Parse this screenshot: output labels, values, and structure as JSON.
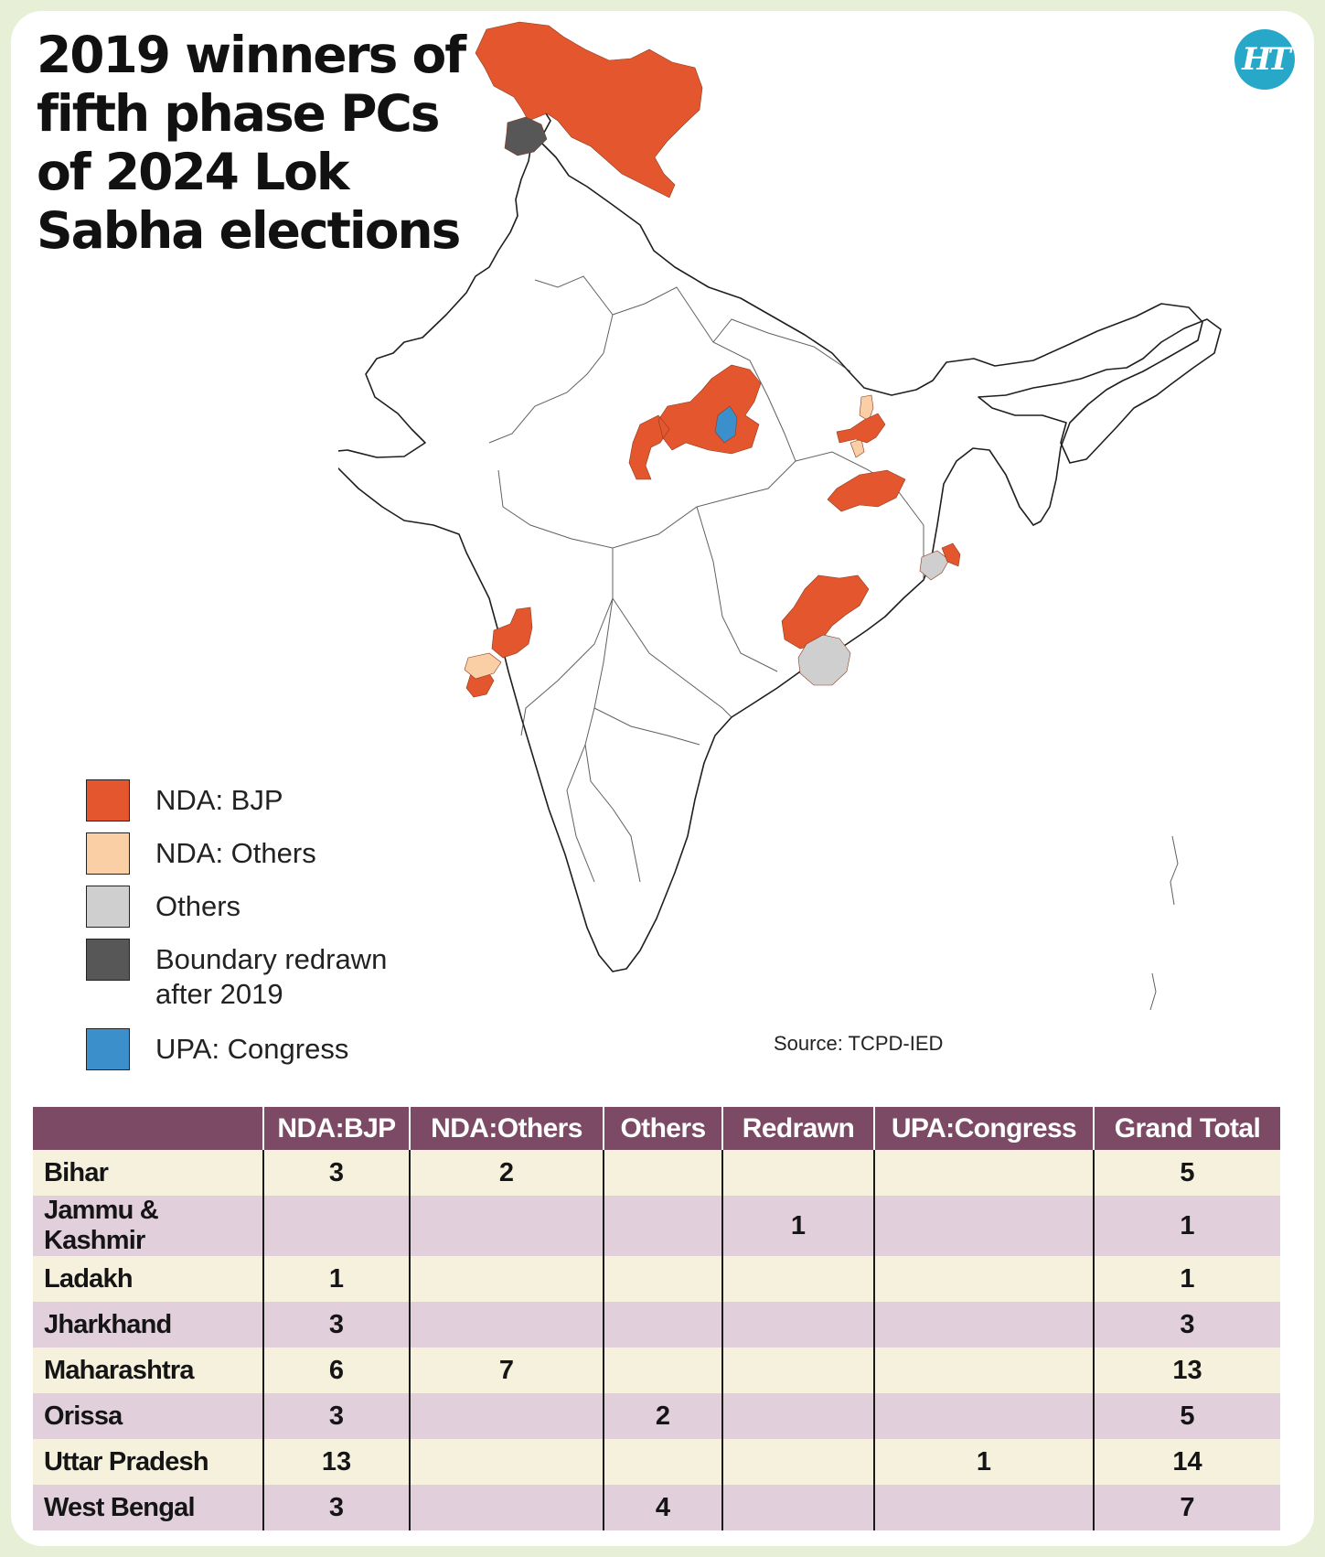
{
  "title": "2019 winners of fifth phase PCs of 2024 Lok Sabha elections",
  "logo": "HT",
  "source": "Source: TCPD-IED",
  "colors": {
    "NDA: BJP": "#e4572e",
    "NDA: Others": "#fbcfa6",
    "Others": "#cfcfcf",
    "Boundary redrawn after 2019": "#575757",
    "UPA: Congress": "#3b8fca",
    "header": "#7d4a66",
    "row_light": "#f5f1dd",
    "row_dark": "#e2cfdc"
  },
  "legend": [
    {
      "label": "NDA: BJP",
      "color": "#e4572e"
    },
    {
      "label": "NDA: Others",
      "color": "#fbcfa6"
    },
    {
      "label": "Others",
      "color": "#cfcfcf"
    },
    {
      "label": "Boundary redrawn after 2019",
      "color": "#575757"
    },
    {
      "label": "UPA: Congress",
      "color": "#3b8fca"
    }
  ],
  "table": {
    "headers": [
      "",
      "NDA:BJP",
      "NDA:Others",
      "Others",
      "Redrawn",
      "UPA:Congress",
      "Grand Total"
    ],
    "rows": [
      [
        "Bihar",
        "3",
        "2",
        "",
        "",
        "",
        "5"
      ],
      [
        "Jammu & Kashmir",
        "",
        "",
        "",
        "1",
        "",
        "1"
      ],
      [
        "Ladakh",
        "1",
        "",
        "",
        "",
        "",
        "1"
      ],
      [
        "Jharkhand",
        "3",
        "",
        "",
        "",
        "",
        "3"
      ],
      [
        "Maharashtra",
        "6",
        "7",
        "",
        "",
        "",
        "13"
      ],
      [
        "Orissa",
        "3",
        "",
        "2",
        "",
        "",
        "5"
      ],
      [
        "Uttar Pradesh",
        "13",
        "",
        "",
        "",
        "1",
        "14"
      ],
      [
        "West Bengal",
        "3",
        "",
        "4",
        "",
        "",
        "7"
      ]
    ]
  }
}
